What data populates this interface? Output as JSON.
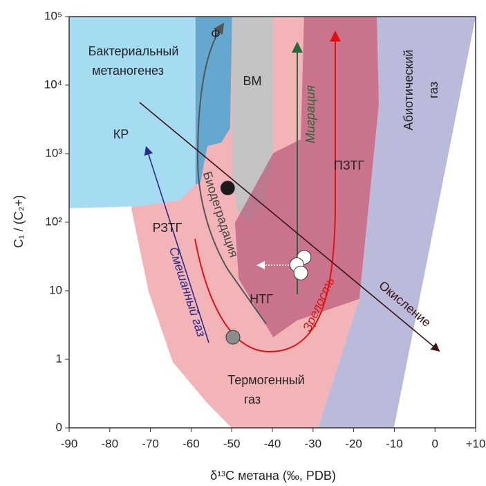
{
  "chart_data": {
    "type": "genetic-diagram",
    "x_label": "δ¹³C метана (‰, PDB)",
    "y_label": "C₁ / (C₂+)",
    "xlim": [
      -90,
      10
    ],
    "ylim": [
      0.1,
      100000
    ],
    "ylog": true,
    "xticks": [
      -90,
      -80,
      -70,
      -60,
      -50,
      -40,
      -30,
      -20,
      -10,
      0,
      {
        "value": 10,
        "label": "+10"
      }
    ],
    "yticks": [
      {
        "value": 0.1,
        "label": "0"
      },
      1,
      10,
      {
        "value": 100,
        "label": "10²"
      },
      {
        "value": 1000,
        "label": "10³"
      },
      {
        "value": 10000,
        "label": "10⁴"
      },
      {
        "value": 100000,
        "label": "10⁵"
      }
    ],
    "regions": [
      {
        "color": "#f3b4b7",
        "x": [
          -74.7,
          -70.4,
          -64.5,
          -56,
          -50,
          -28.8,
          -18.6,
          -13.8,
          -14.3,
          -39.8,
          -58.9
        ],
        "y": [
          158,
          9.5,
          0.91,
          0.23,
          0.1,
          0.1,
          7.6,
          5200,
          100000,
          100000,
          100000
        ]
      },
      {
        "color": "#a6dcf2",
        "x": [
          -90,
          -58.9,
          -58.9,
          -62.8,
          -73,
          -90
        ],
        "y": [
          100000,
          100000,
          355,
          209,
          170,
          160
        ]
      },
      {
        "color": "#65a8cf",
        "x": [
          -58.9,
          -49.9,
          -50.4,
          -52.6,
          -56,
          -57.7,
          -58.9
        ],
        "y": [
          100000,
          100000,
          2340,
          1450,
          1290,
          380,
          355
        ]
      },
      {
        "color": "#c3c3c3",
        "x": [
          -49.9,
          -39.8,
          -39.8,
          -40.3,
          -42.4,
          -45.8,
          -48.8,
          -49.9
        ],
        "y": [
          100000,
          100000,
          1620,
          513,
          158,
          93,
          158,
          513
        ]
      },
      {
        "color": "#b85c7c",
        "x": [
          -32.2,
          -14.3,
          -13.8,
          -18.6,
          -33.9,
          -39.8,
          -48.3,
          -49.2,
          -39.8,
          -33
        ],
        "y": [
          100000,
          100000,
          5200,
          7.6,
          3.7,
          2.1,
          15,
          98,
          1020,
          1620
        ]
      },
      {
        "color": "#b4b4d7",
        "x": [
          -14.3,
          10,
          -10.1,
          -28.8,
          -18.6,
          -13.8
        ],
        "y": [
          100000,
          100000,
          0.1,
          0.1,
          7.6,
          5200
        ]
      }
    ],
    "points": [
      {
        "color": "#1a1a1a",
        "x": [
          -51
        ],
        "y": [
          316
        ]
      },
      {
        "color": "#8c8c8c",
        "x": [
          -49.7
        ],
        "y": [
          2.1
        ]
      },
      {
        "color": "#ffffff",
        "x": [
          -32.2,
          -34,
          -33
        ],
        "y": [
          30.9,
          24,
          18.2
        ]
      }
    ],
    "labels": [
      "Бактериальный",
      "метаногенез",
      "КР",
      "Ф",
      "ВМ",
      "РЗТГ",
      "НТГ",
      "ПЗТГ",
      "Термогенный",
      "газ",
      "Абиотический",
      "газ"
    ],
    "arrows": [
      "Миграция",
      "Окисление",
      "Зрелость",
      "Биодеградация",
      "Смешанный газ"
    ]
  }
}
